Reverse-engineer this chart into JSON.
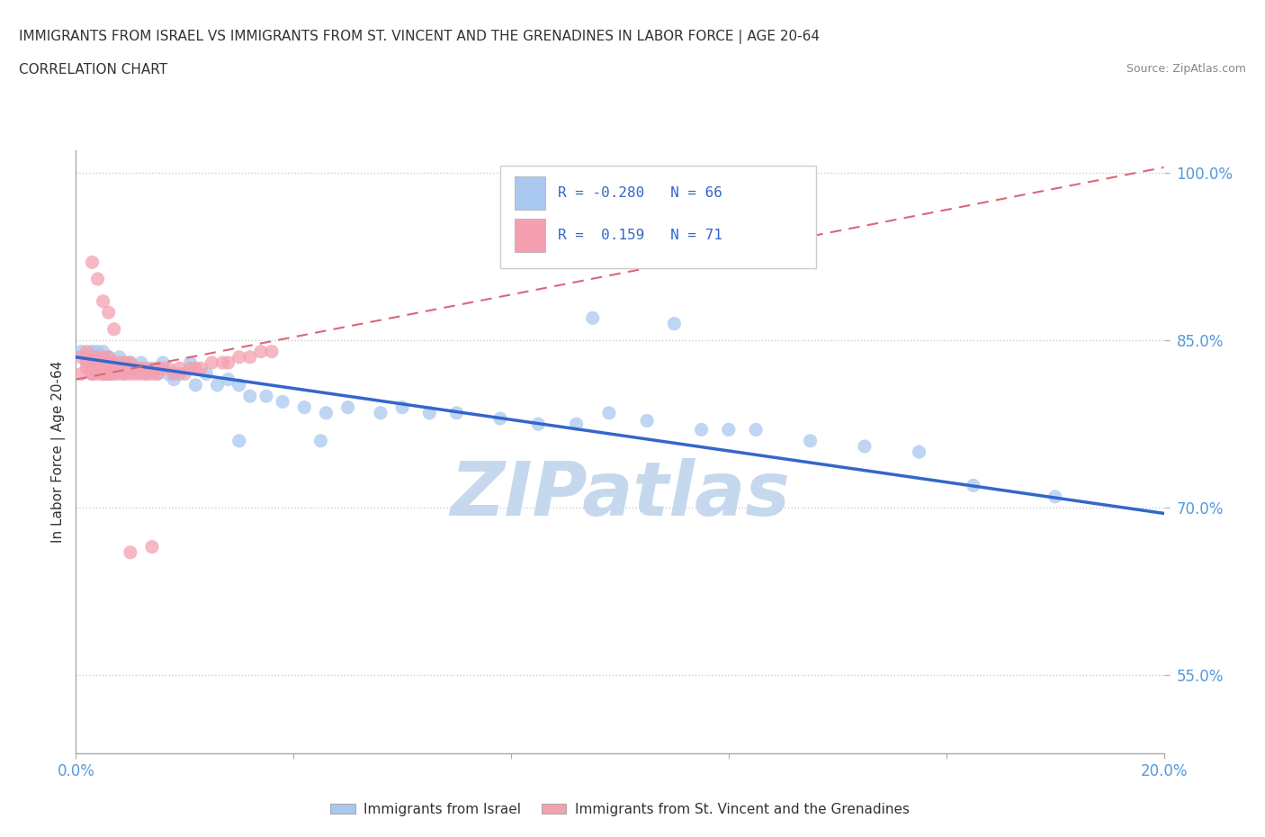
{
  "title": "IMMIGRANTS FROM ISRAEL VS IMMIGRANTS FROM ST. VINCENT AND THE GRENADINES IN LABOR FORCE | AGE 20-64",
  "subtitle": "CORRELATION CHART",
  "source": "Source: ZipAtlas.com",
  "ylabel": "In Labor Force | Age 20-64",
  "xlim": [
    0.0,
    0.2
  ],
  "ylim": [
    0.48,
    1.02
  ],
  "ytick_vals": [
    0.55,
    0.7,
    0.85,
    1.0
  ],
  "ytick_labels": [
    "55.0%",
    "70.0%",
    "85.0%",
    "100.0%"
  ],
  "xtick_positions": [
    0.0,
    0.04,
    0.08,
    0.12,
    0.16,
    0.2
  ],
  "xtick_labels": [
    "0.0%",
    "",
    "",
    "",
    "",
    "20.0%"
  ],
  "israel_color": "#A8C8F0",
  "svg_color": "#F4A0B0",
  "israel_line_color": "#3366CC",
  "svg_line_color": "#DD6677",
  "watermark": "ZIPatlas",
  "watermark_color": "#C5D8EE",
  "legend_israel_label": "Immigrants from Israel",
  "legend_svg_label": "Immigrants from St. Vincent and the Grenadines",
  "israel_line_x0": 0.0,
  "israel_line_y0": 0.835,
  "israel_line_x1": 0.2,
  "israel_line_y1": 0.695,
  "svg_line_x0": 0.0,
  "svg_line_y0": 0.815,
  "svg_line_x1": 0.2,
  "svg_line_y1": 1.005,
  "israel_x": [
    0.001,
    0.002,
    0.002,
    0.003,
    0.003,
    0.003,
    0.004,
    0.004,
    0.004,
    0.005,
    0.005,
    0.005,
    0.005,
    0.006,
    0.006,
    0.006,
    0.007,
    0.007,
    0.008,
    0.008,
    0.009,
    0.009,
    0.01,
    0.01,
    0.011,
    0.012,
    0.013,
    0.014,
    0.015,
    0.016,
    0.017,
    0.018,
    0.019,
    0.021,
    0.022,
    0.024,
    0.026,
    0.028,
    0.03,
    0.032,
    0.035,
    0.038,
    0.042,
    0.046,
    0.05,
    0.056,
    0.06,
    0.065,
    0.07,
    0.078,
    0.085,
    0.092,
    0.098,
    0.105,
    0.115,
    0.12,
    0.095,
    0.11,
    0.125,
    0.135,
    0.145,
    0.155,
    0.03,
    0.045,
    0.165,
    0.18
  ],
  "israel_y": [
    0.84,
    0.835,
    0.83,
    0.84,
    0.825,
    0.82,
    0.84,
    0.825,
    0.83,
    0.84,
    0.83,
    0.82,
    0.835,
    0.835,
    0.82,
    0.825,
    0.83,
    0.82,
    0.835,
    0.825,
    0.83,
    0.82,
    0.83,
    0.825,
    0.825,
    0.83,
    0.82,
    0.825,
    0.82,
    0.83,
    0.82,
    0.815,
    0.82,
    0.83,
    0.81,
    0.82,
    0.81,
    0.815,
    0.81,
    0.8,
    0.8,
    0.795,
    0.79,
    0.785,
    0.79,
    0.785,
    0.79,
    0.785,
    0.785,
    0.78,
    0.775,
    0.775,
    0.785,
    0.778,
    0.77,
    0.77,
    0.87,
    0.865,
    0.77,
    0.76,
    0.755,
    0.75,
    0.76,
    0.76,
    0.72,
    0.71
  ],
  "svg_x": [
    0.001,
    0.001,
    0.002,
    0.002,
    0.002,
    0.003,
    0.003,
    0.003,
    0.003,
    0.003,
    0.004,
    0.004,
    0.004,
    0.004,
    0.005,
    0.005,
    0.005,
    0.005,
    0.005,
    0.005,
    0.006,
    0.006,
    0.006,
    0.006,
    0.006,
    0.006,
    0.007,
    0.007,
    0.007,
    0.007,
    0.008,
    0.008,
    0.008,
    0.008,
    0.009,
    0.009,
    0.009,
    0.01,
    0.01,
    0.01,
    0.011,
    0.011,
    0.012,
    0.012,
    0.013,
    0.013,
    0.014,
    0.015,
    0.015,
    0.016,
    0.017,
    0.018,
    0.019,
    0.02,
    0.021,
    0.022,
    0.023,
    0.025,
    0.027,
    0.028,
    0.03,
    0.032,
    0.034,
    0.036,
    0.003,
    0.004,
    0.005,
    0.006,
    0.014,
    0.007,
    0.01
  ],
  "svg_y": [
    0.835,
    0.82,
    0.825,
    0.83,
    0.84,
    0.82,
    0.825,
    0.83,
    0.82,
    0.835,
    0.82,
    0.83,
    0.825,
    0.835,
    0.82,
    0.825,
    0.82,
    0.83,
    0.835,
    0.82,
    0.825,
    0.82,
    0.83,
    0.825,
    0.82,
    0.835,
    0.82,
    0.83,
    0.825,
    0.83,
    0.825,
    0.82,
    0.83,
    0.825,
    0.82,
    0.83,
    0.825,
    0.82,
    0.825,
    0.83,
    0.82,
    0.825,
    0.825,
    0.82,
    0.82,
    0.825,
    0.82,
    0.825,
    0.82,
    0.825,
    0.825,
    0.82,
    0.825,
    0.82,
    0.825,
    0.825,
    0.825,
    0.83,
    0.83,
    0.83,
    0.835,
    0.835,
    0.84,
    0.84,
    0.92,
    0.905,
    0.885,
    0.875,
    0.665,
    0.86,
    0.66
  ]
}
